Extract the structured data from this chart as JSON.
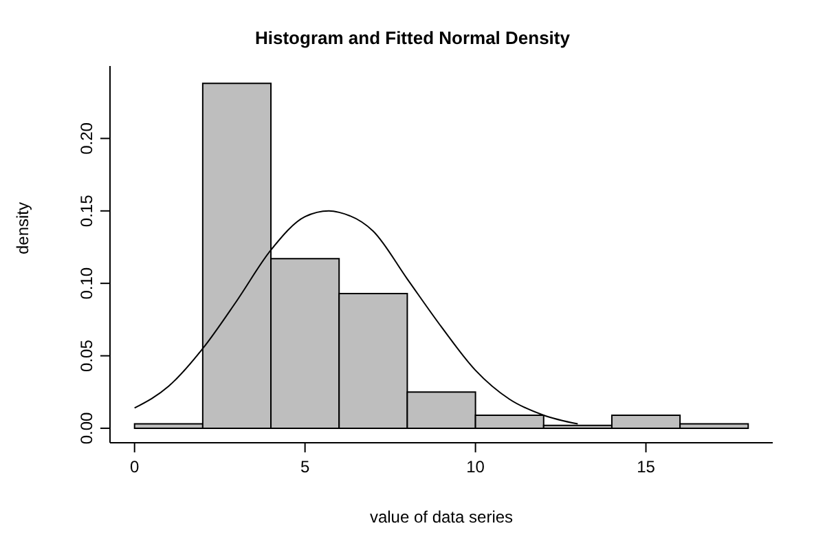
{
  "chart_data": {
    "type": "histogram",
    "title": "Histogram and Fitted Normal Density",
    "xlabel": "value of data series",
    "ylabel": "density",
    "bins": [
      0,
      2,
      4,
      6,
      8,
      10,
      12,
      14,
      16,
      18
    ],
    "values": [
      0.003,
      0.238,
      0.117,
      0.093,
      0.025,
      0.009,
      0.002,
      0.009,
      0.003
    ],
    "color": "#bebebe",
    "series": [
      {
        "type": "line",
        "color": "#000000",
        "x": [
          0,
          1,
          2,
          3,
          4,
          5,
          5.7,
          6,
          7,
          8,
          9,
          10,
          11,
          12,
          13
        ],
        "values": [
          0.014,
          0.029,
          0.055,
          0.088,
          0.123,
          0.146,
          0.15,
          0.149,
          0.136,
          0.103,
          0.07,
          0.04,
          0.02,
          0.009,
          0.003
        ]
      }
    ],
    "xlim": [
      -0.72,
      18.72
    ],
    "ylim": [
      -0.01,
      0.25
    ],
    "xticks": [
      0,
      5,
      10,
      15
    ],
    "yticks": [
      {
        "value": 0,
        "label": "0.00"
      },
      {
        "value": 0.05,
        "label": "0.05"
      },
      {
        "value": 0.1,
        "label": "0.10"
      },
      {
        "value": 0.15,
        "label": "0.15"
      },
      {
        "value": 0.2,
        "label": "0.20"
      }
    ],
    "grid": false
  }
}
